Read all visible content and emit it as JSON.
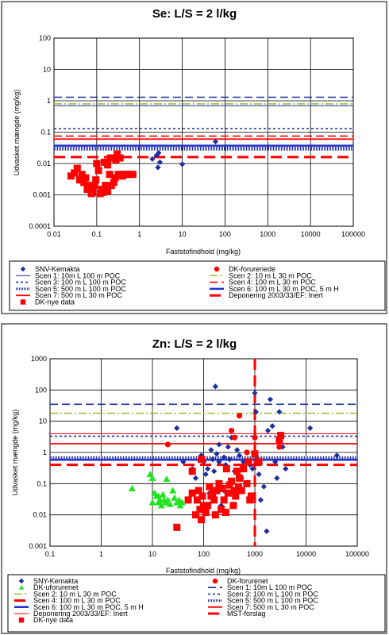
{
  "chart_data": [
    {
      "type": "scatter",
      "title": "Se: L/S = 2 l/kg",
      "xlabel": "Faststofindhold (mg/kg)",
      "ylabel": "Udvasket mængde (mg/kg)",
      "xscale": "log",
      "yscale": "log",
      "xlim": [
        0.01,
        100000
      ],
      "ylim": [
        0.0001,
        100
      ],
      "x_ticks": [
        "0.01",
        "0.1",
        "1",
        "10",
        "100",
        "1000",
        "10000",
        "100000"
      ],
      "y_ticks": [
        "0.0001",
        "0.001",
        "0.01",
        "0.1",
        "1",
        "10",
        "100"
      ],
      "grid": true,
      "legend_position": "bottom",
      "colors": {
        "blue": "#1f2f9c",
        "darkblue": "#1f2f9c",
        "red": "#ff0000",
        "olive": "#99bb33",
        "navy": "#16168a",
        "green": "#1ee51e"
      },
      "series": [
        {
          "name": "SNV-Kemakta",
          "kind": "points",
          "marker": "diamond",
          "color": "#1f2f9c",
          "points": [
            [
              2.0,
              0.014
            ],
            [
              2.5,
              0.018
            ],
            [
              2.8,
              0.022
            ],
            [
              3.0,
              0.011
            ],
            [
              2.7,
              0.0075
            ],
            [
              10,
              0.0095
            ],
            [
              60,
              0.05
            ]
          ]
        },
        {
          "name": "DK-forurenede",
          "kind": "points",
          "marker": "circle",
          "color": "#ff0000",
          "points": []
        },
        {
          "name": "Scen 1: 10m L 100 m POC",
          "kind": "hline",
          "y": 0.7,
          "style": "thin",
          "color": "#1f2f9c"
        },
        {
          "name": "Scen 2: 10 m L 30 m POC",
          "kind": "hline",
          "y": 0.8,
          "style": "dashdot",
          "color": "#99bb33"
        },
        {
          "name": "Scen 3: 100 m L 100 m POC",
          "kind": "hline",
          "y": 0.13,
          "style": "dotted",
          "color": "#1f2f9c"
        },
        {
          "name": "Scen 4: 100 m L 30 m POC",
          "kind": "hline",
          "y": 0.075,
          "style": "dashed",
          "color": "#ff0000"
        },
        {
          "name": "Scen 5: 500 m L 100 m POC",
          "kind": "hline",
          "y": 0.03,
          "style": "dense",
          "color": "#1f2f9c"
        },
        {
          "name": "Scen 6: 100 m L 30 m POC, 5 m H",
          "kind": "hline",
          "y": 0.037,
          "style": "thick",
          "color": "#2030c8"
        },
        {
          "name": "Scen 7: 500 m L 30 m POC",
          "kind": "hline",
          "y": 0.06,
          "style": "redsolid",
          "color": "#ff0000"
        },
        {
          "name": "Deponering 2003/33/EF: Inert",
          "kind": "hline",
          "y": 0.016,
          "style": "thickdash",
          "color": "#ff0000"
        },
        {
          "name": "",
          "kind": "hline",
          "y": 1.3,
          "style": "dashed",
          "color": "#1f2f9c"
        },
        {
          "name": "DK-nye data",
          "kind": "points",
          "marker": "square",
          "color": "#ff0000",
          "points": [
            [
              0.025,
              0.004
            ],
            [
              0.03,
              0.005
            ],
            [
              0.035,
              0.007
            ],
            [
              0.04,
              0.003
            ],
            [
              0.045,
              0.0045
            ],
            [
              0.05,
              0.0025
            ],
            [
              0.055,
              0.0035
            ],
            [
              0.06,
              0.0015
            ],
            [
              0.07,
              0.002
            ],
            [
              0.075,
              0.0011
            ],
            [
              0.08,
              0.0012
            ],
            [
              0.09,
              0.002
            ],
            [
              0.095,
              0.003
            ],
            [
              0.1,
              0.01
            ],
            [
              0.11,
              0.006
            ],
            [
              0.12,
              0.0011
            ],
            [
              0.13,
              0.0015
            ],
            [
              0.14,
              0.0012
            ],
            [
              0.15,
              0.011
            ],
            [
              0.16,
              0.002
            ],
            [
              0.17,
              0.0016
            ],
            [
              0.18,
              0.0013
            ],
            [
              0.2,
              0.0045
            ],
            [
              0.21,
              0.015
            ],
            [
              0.22,
              0.002
            ],
            [
              0.25,
              0.0025
            ],
            [
              0.27,
              0.0035
            ],
            [
              0.3,
              0.02
            ],
            [
              0.32,
              0.0045
            ],
            [
              0.35,
              0.015
            ],
            [
              0.4,
              0.004
            ],
            [
              0.45,
              0.0045
            ],
            [
              0.5,
              0.0045
            ],
            [
              0.6,
              0.0045
            ],
            [
              0.7,
              0.0045
            ],
            [
              0.18,
              0.009
            ],
            [
              0.28,
              0.013
            ]
          ]
        }
      ]
    },
    {
      "type": "scatter",
      "title": "Zn: L/S = 2 l/kg",
      "xlabel": "Faststofindhold (mg/kg)",
      "ylabel": "Udvasket mængde (mg/kg)",
      "xscale": "log",
      "yscale": "log",
      "xlim": [
        0.1,
        100000
      ],
      "ylim": [
        0.001,
        1000
      ],
      "x_ticks": [
        "0.1",
        "1",
        "10",
        "100",
        "1000",
        "10000",
        "100000"
      ],
      "y_ticks": [
        "0.001",
        "0.01",
        "0.1",
        "1",
        "10",
        "100",
        "1000"
      ],
      "grid": true,
      "legend_position": "bottom",
      "series": [
        {
          "name": "SNY-Kemakta",
          "kind": "points",
          "marker": "diamond",
          "color": "#1f2f9c",
          "points": [
            [
              30,
              6
            ],
            [
              40,
              0.5
            ],
            [
              60,
              0.3
            ],
            [
              70,
              0.15
            ],
            [
              90,
              0.8
            ],
            [
              100,
              0.5
            ],
            [
              110,
              0.2
            ],
            [
              120,
              0.3
            ],
            [
              130,
              0.05
            ],
            [
              140,
              1.2
            ],
            [
              150,
              0.6
            ],
            [
              160,
              0.25
            ],
            [
              170,
              130
            ],
            [
              180,
              0.9
            ],
            [
              200,
              0.5
            ],
            [
              220,
              0.02
            ],
            [
              250,
              0.7
            ],
            [
              270,
              0.4
            ],
            [
              300,
              1.5
            ],
            [
              320,
              0.6
            ],
            [
              350,
              3
            ],
            [
              400,
              0.25
            ],
            [
              450,
              1.2
            ],
            [
              500,
              0.8
            ],
            [
              550,
              0.15
            ],
            [
              600,
              0.5
            ],
            [
              700,
              1
            ],
            [
              800,
              0.4
            ],
            [
              900,
              0.3
            ],
            [
              1000,
              80
            ],
            [
              1050,
              20
            ],
            [
              1100,
              0.6
            ],
            [
              1200,
              0.2
            ],
            [
              1500,
              0.08
            ],
            [
              1700,
              0.003
            ],
            [
              2000,
              50
            ],
            [
              2200,
              7
            ],
            [
              2500,
              0.5
            ],
            [
              2700,
              0.15
            ],
            [
              3000,
              20
            ],
            [
              3500,
              1.5
            ],
            [
              4000,
              0.3
            ],
            [
              12000,
              6
            ],
            [
              40000,
              0.8
            ],
            [
              200,
              1.8
            ],
            [
              250,
              0.06
            ],
            [
              1300,
              0.03
            ],
            [
              1800,
              5
            ]
          ]
        },
        {
          "name": "DK-forurenet",
          "kind": "points",
          "marker": "circle",
          "color": "#ff0000",
          "points": [
            [
              20,
              1.8
            ],
            [
              350,
              5
            ],
            [
              400,
              3
            ],
            [
              500,
              15
            ],
            [
              700,
              1
            ],
            [
              1000,
              3
            ],
            [
              3000,
              1.5
            ]
          ]
        },
        {
          "name": "DK-uforurenet",
          "kind": "points",
          "marker": "triangle",
          "color": "#1ee51e",
          "points": [
            [
              4,
              0.07
            ],
            [
              9,
              0.2
            ],
            [
              10,
              0.15
            ],
            [
              11,
              0.05
            ],
            [
              12,
              0.04
            ],
            [
              13,
              0.025
            ],
            [
              14,
              0.03
            ],
            [
              15,
              0.02
            ],
            [
              16,
              0.045
            ],
            [
              17,
              0.03
            ],
            [
              18,
              0.025
            ],
            [
              19,
              0.14
            ],
            [
              20,
              0.03
            ],
            [
              22,
              0.022
            ],
            [
              25,
              0.06
            ],
            [
              27,
              0.035
            ],
            [
              30,
              0.025
            ],
            [
              33,
              0.03
            ],
            [
              35,
              0.02
            ],
            [
              38,
              0.025
            ],
            [
              10,
              0.025
            ],
            [
              13,
              0.04
            ]
          ]
        },
        {
          "name": "Scen 1: 10m L 100 m POC",
          "kind": "hline",
          "y": 35,
          "style": "dashed",
          "color": "#1f2f9c"
        },
        {
          "name": "Scen 2: 10 m L 30 m POC",
          "kind": "hline",
          "y": 18,
          "style": "dashdot",
          "color": "#99bb33"
        },
        {
          "name": "Scen 3: 100 m L 100 m POC",
          "kind": "hline",
          "y": 3.3,
          "style": "dotted",
          "color": "#1f2f9c"
        },
        {
          "name": "Scen 4: 100 m L 30 m POC",
          "kind": "hline",
          "y": 0.4,
          "style": "thickdash",
          "color": "#ff0000"
        },
        {
          "name": "Scen 5: 500 m L 100 m POC",
          "kind": "hline",
          "y": 0.65,
          "style": "dense",
          "color": "#1f2f9c"
        },
        {
          "name": "Scen 6: 100 m L 30 m POC, 5 m H",
          "kind": "hline",
          "y": 0.58,
          "style": "thick",
          "color": "#2030c8"
        },
        {
          "name": "Scen 7: 500 m L 30 m POC",
          "kind": "hline",
          "y": 1.9,
          "style": "redsolid",
          "color": "#ff0000"
        },
        {
          "name": "Deponering 2003/33/EF: Inert",
          "kind": "hline",
          "y": 4,
          "style": "thin",
          "color": "#ff0000"
        },
        {
          "name": "MST-forslag",
          "kind": "vline",
          "x": 1000,
          "style": "thickdash",
          "color": "#ff0000"
        },
        {
          "name": "DK-nye data",
          "kind": "points",
          "marker": "square",
          "color": "#ff0000",
          "points": [
            [
              30,
              0.004
            ],
            [
              50,
              0.03
            ],
            [
              60,
              0.05
            ],
            [
              70,
              0.01
            ],
            [
              75,
              0.03
            ],
            [
              80,
              0.06
            ],
            [
              85,
              0.015
            ],
            [
              90,
              0.007
            ],
            [
              95,
              0.04
            ],
            [
              100,
              0.02
            ],
            [
              110,
              0.012
            ],
            [
              120,
              0.02
            ],
            [
              130,
              0.08
            ],
            [
              140,
              0.04
            ],
            [
              150,
              0.05
            ],
            [
              160,
              0.03
            ],
            [
              170,
              0.01
            ],
            [
              180,
              0.06
            ],
            [
              200,
              0.1
            ],
            [
              220,
              0.015
            ],
            [
              230,
              0.07
            ],
            [
              250,
              0.03
            ],
            [
              270,
              0.012
            ],
            [
              280,
              0.3
            ],
            [
              300,
              0.05
            ],
            [
              320,
              0.09
            ],
            [
              350,
              0.12
            ],
            [
              380,
              0.02
            ],
            [
              400,
              0.06
            ],
            [
              420,
              0.04
            ],
            [
              450,
              0.25
            ],
            [
              480,
              0.08
            ],
            [
              500,
              0.15
            ],
            [
              550,
              0.06
            ],
            [
              600,
              0.3
            ],
            [
              700,
              0.1
            ],
            [
              750,
              0.5
            ],
            [
              800,
              0.03
            ],
            [
              850,
              0.04
            ],
            [
              1000,
              0.9
            ],
            [
              1200,
              0.5
            ],
            [
              3000,
              2.5
            ],
            [
              3200,
              3.5
            ],
            [
              90,
              0.6
            ],
            [
              60,
              0.25
            ]
          ]
        }
      ]
    }
  ]
}
